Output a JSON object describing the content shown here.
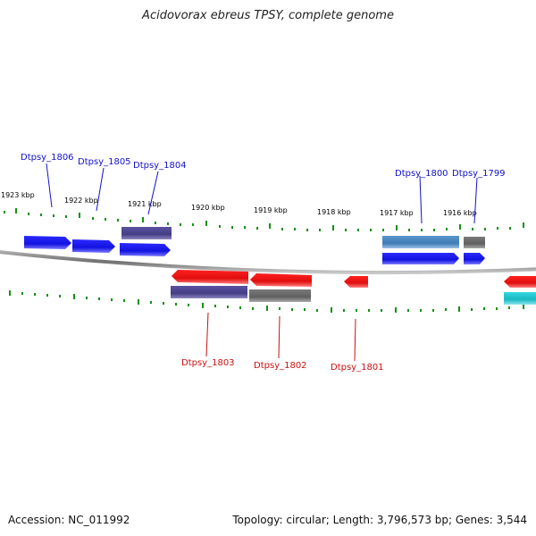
{
  "title": "Acidovorax ebreus TPSY, complete genome",
  "accession": "Accession: NC_011992",
  "topology": "Topology: circular; Length: 3,796,573 bp; Genes: 3,544",
  "colors": {
    "forward_gene": "#1a1aee",
    "reverse_gene": "#ee1111",
    "cds_purple": "#4a428a",
    "cds_gray": "#6a6a6a",
    "cds_steel": "#4a86be",
    "cds_cyan": "#22c4cc",
    "tick": "#159015",
    "backbone": "#888888",
    "fwd_label": "#1010cc",
    "rev_label": "#cc1010"
  },
  "scale": {
    "unit": "kbp",
    "labels": [
      "1923 kbp",
      "1922 kbp",
      "1921 kbp",
      "1920 kbp",
      "1919 kbp",
      "1918 kbp",
      "1917 kbp",
      "1916 kbp"
    ]
  },
  "genes_forward": [
    {
      "label": "Dtpsy_1806"
    },
    {
      "label": "Dtpsy_1805"
    },
    {
      "label": "Dtpsy_1804"
    },
    {
      "label": "Dtpsy_1800"
    },
    {
      "label": "Dtpsy_1799"
    }
  ],
  "genes_reverse": [
    {
      "label": "Dtpsy_1803"
    },
    {
      "label": "Dtpsy_1802"
    },
    {
      "label": "Dtpsy_1801"
    }
  ]
}
